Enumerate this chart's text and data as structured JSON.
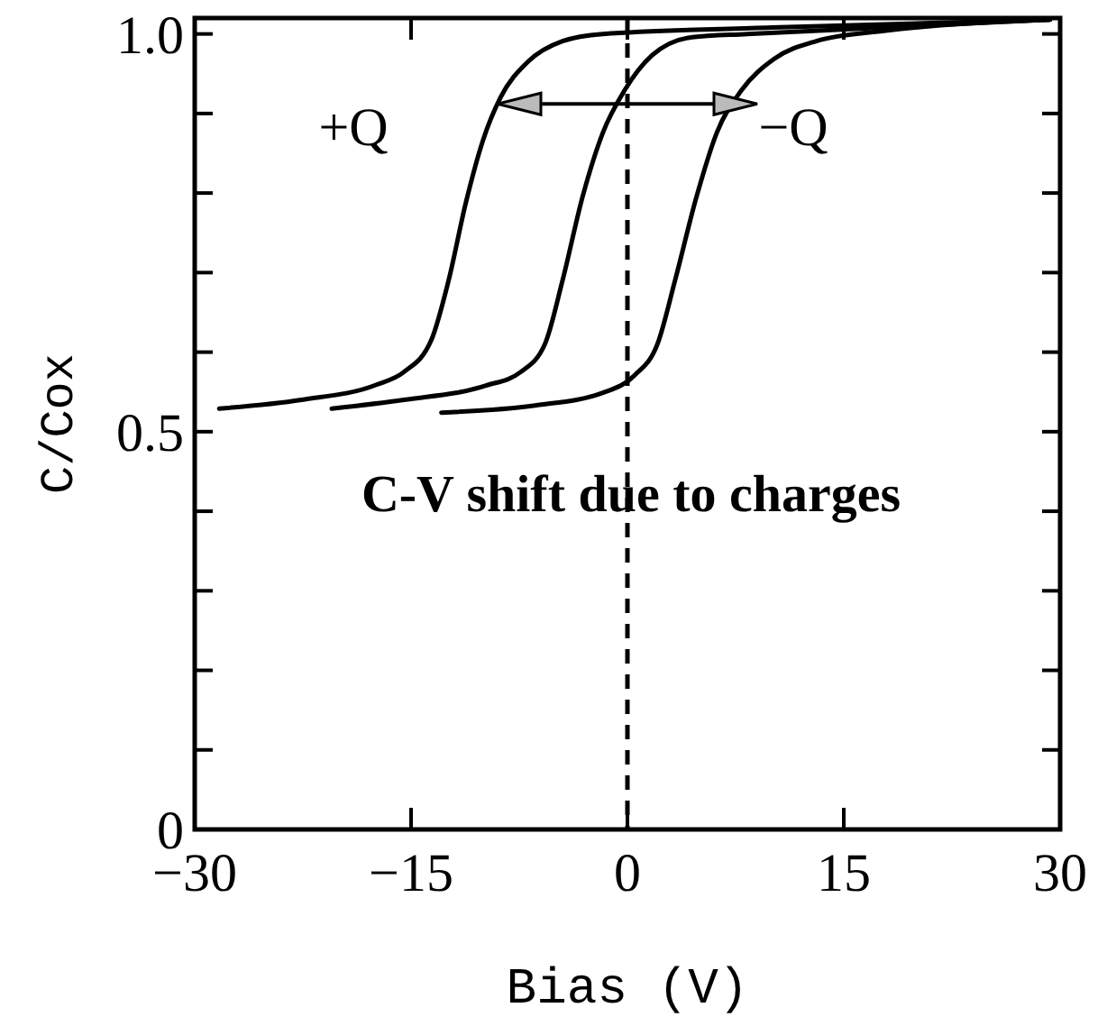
{
  "chart_data": {
    "type": "line",
    "xlabel": "Bias (V)",
    "ylabel": "C/Cox",
    "xlim": [
      -30,
      30
    ],
    "ylim": [
      0,
      1.02
    ],
    "xticks": [
      {
        "value": -30,
        "label": "−30"
      },
      {
        "value": -15,
        "label": "−15"
      },
      0,
      15,
      30
    ],
    "yticks": [
      0,
      {
        "value": 0.1,
        "label": null
      },
      {
        "value": 0.2,
        "label": null
      },
      {
        "value": 0.3,
        "label": null
      },
      {
        "value": 0.4,
        "label": null
      },
      {
        "value": 0.5,
        "label": "0.5"
      },
      {
        "value": 0.6,
        "label": null
      },
      {
        "value": 0.7,
        "label": null
      },
      {
        "value": 0.8,
        "label": null
      },
      {
        "value": 0.9,
        "label": null
      },
      {
        "value": 1.0,
        "label": "1.0"
      }
    ],
    "grid": false,
    "marker": "none",
    "line_style": "solid",
    "series": [
      {
        "color": "#000000",
        "x": [
          -28.3,
          -22.6,
          -17.4,
          -15.5,
          -13.6,
          -12.4,
          -11.2,
          -10,
          -8.8,
          -6.9,
          -4.5,
          -1.7,
          10,
          29.3
        ],
        "values": [
          0.529,
          0.54,
          0.559,
          0.575,
          0.615,
          0.69,
          0.788,
          0.867,
          0.92,
          0.965,
          0.991,
          1.0,
          1.008,
          1.018
        ]
      },
      {
        "color": "#000000",
        "x": [
          -20.5,
          -15.5,
          -9.8,
          -7.4,
          -5.7,
          -4.5,
          -3.1,
          -1.7,
          -0.2,
          1.7,
          4.5,
          8.3,
          29.3
        ],
        "values": [
          0.529,
          0.54,
          0.558,
          0.575,
          0.611,
          0.69,
          0.796,
          0.876,
          0.929,
          0.973,
          0.996,
          1.0,
          1.018
        ]
      },
      {
        "color": "#000000",
        "x": [
          -12.9,
          -6.4,
          -1.7,
          0.5,
          2.1,
          3.3,
          4.8,
          6.2,
          7.9,
          10.2,
          13.1,
          17.9,
          29.3
        ],
        "values": [
          0.524,
          0.533,
          0.549,
          0.571,
          0.611,
          0.69,
          0.796,
          0.876,
          0.929,
          0.969,
          0.991,
          1.004,
          1.018
        ]
      }
    ],
    "ref_lines": [
      {
        "axis": "x",
        "value": 0,
        "line_style": "dashed",
        "color": "#000000"
      }
    ],
    "annotations": [
      "+Q",
      "−Q",
      "C-V shift due to charges"
    ]
  }
}
